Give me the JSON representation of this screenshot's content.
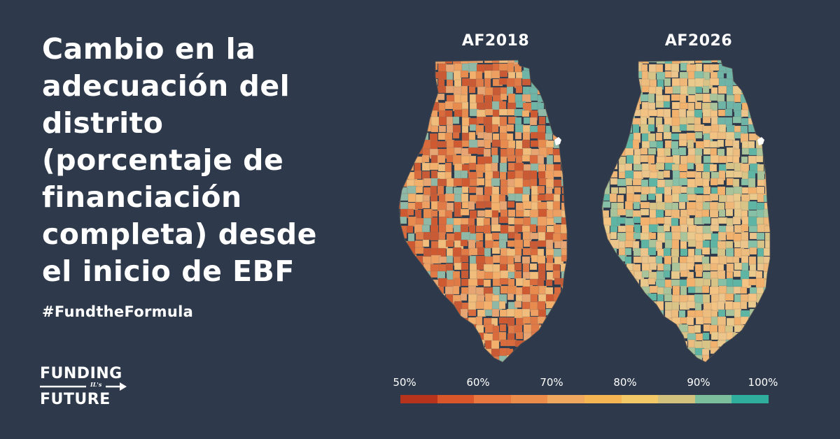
{
  "headline": {
    "lines": [
      "Cambio en la",
      "adecuación del",
      "distrito",
      "(porcentaje de",
      "financiación",
      "completa) desde",
      "el inicio de EBF"
    ]
  },
  "hashtag": "#FundtheFormula",
  "logo": {
    "top": "FUNDING",
    "middle": "IL's",
    "bottom": "FUTURE"
  },
  "maps": [
    {
      "title": "AF2018",
      "tone": "warm"
    },
    {
      "title": "AF2026",
      "tone": "cool"
    }
  ],
  "legend": {
    "labels": [
      "50%",
      "60%",
      "70%",
      "80%",
      "90%",
      "100%"
    ],
    "colors": [
      "#b8331c",
      "#d9562a",
      "#e8773f",
      "#eb8c4a",
      "#f0a85e",
      "#f4b552",
      "#f3c968",
      "#d3c27e",
      "#7bbf9c",
      "#2fae9d"
    ]
  }
}
